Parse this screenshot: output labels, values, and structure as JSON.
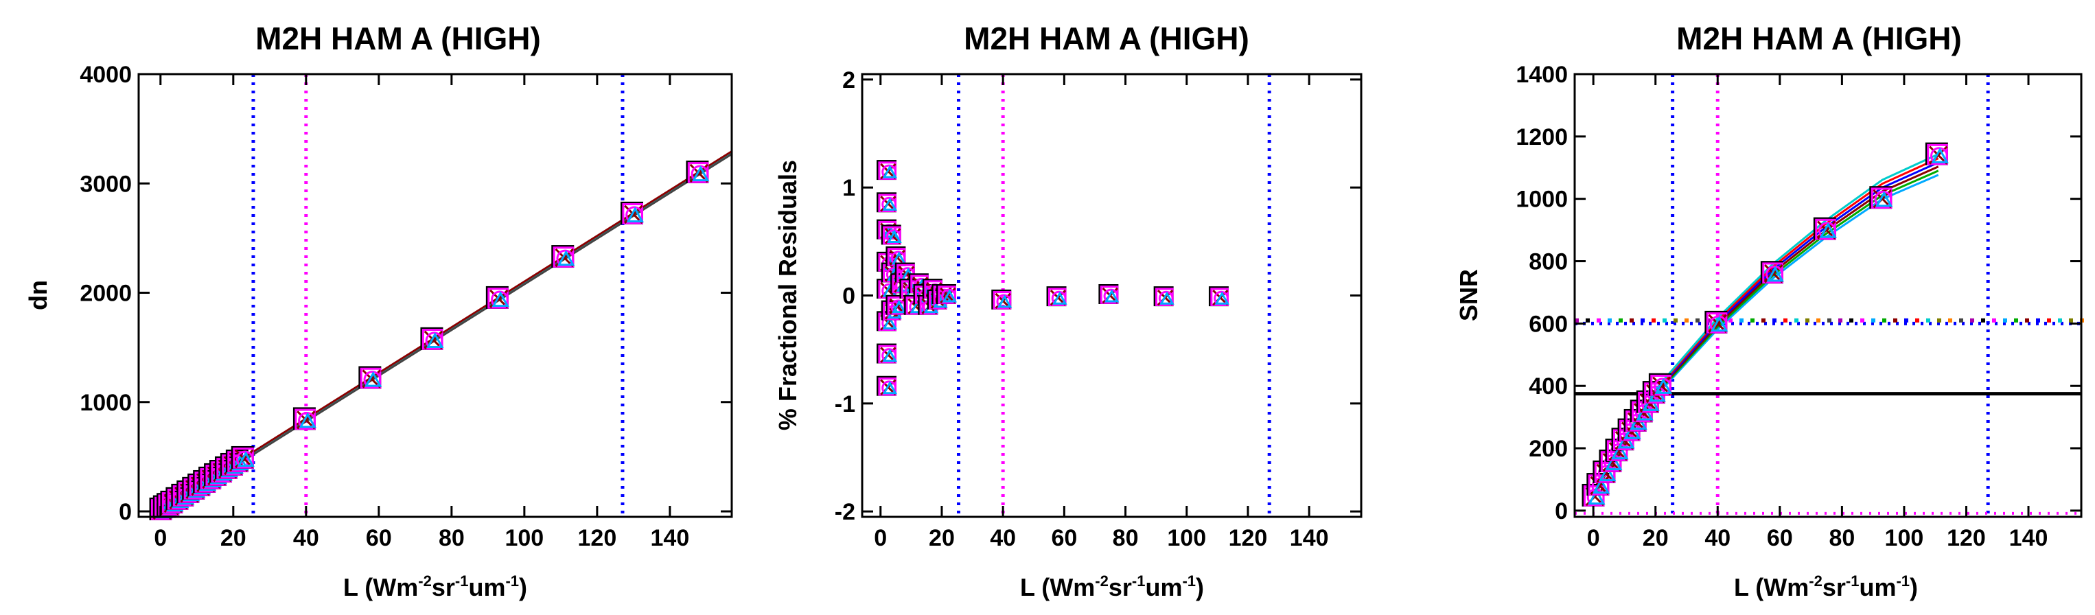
{
  "figure": {
    "colors": {
      "vline_outer": "#0000ff",
      "vline_mid": "#ff00ff",
      "spec_line": "#000000",
      "series": [
        "#000000",
        "#ff00ff",
        "#00aaff",
        "#00aa00",
        "#8b0000",
        "#0000ff",
        "#ff0000",
        "#00cccc",
        "#7f7f00",
        "#ff7f00",
        "#444444",
        "#aa00aa"
      ]
    }
  },
  "chart_data": [
    {
      "type": "scatter",
      "title": "M2H HAM A (HIGH)",
      "xlabel": {
        "base": "L (Wm",
        "sup1": "-2",
        "mid": "sr",
        "sup2": "-1",
        "unit": "um",
        "sup3": "-1",
        "end": ")"
      },
      "ylabel": "dn",
      "xlim": [
        -6,
        157
      ],
      "ylim": [
        -50,
        4000
      ],
      "xticks": [
        "0",
        "20",
        "40",
        "60",
        "80",
        "100",
        "120",
        "140"
      ],
      "xtick_values": [
        0,
        20,
        40,
        60,
        80,
        100,
        120,
        140
      ],
      "yticks": [
        "0",
        "1000",
        "2000",
        "3000",
        "4000"
      ],
      "ytick_values": [
        0,
        1000,
        2000,
        3000,
        4000
      ],
      "vlines": [
        {
          "x": 25.5,
          "color": "vline_outer"
        },
        {
          "x": 40,
          "color": "vline_mid"
        },
        {
          "x": 127,
          "color": "vline_outer"
        }
      ],
      "fit": {
        "slope": 20.9,
        "intercept": 0,
        "x_range": [
          0,
          157
        ]
      },
      "x": [
        0.5,
        1.5,
        2.5,
        3.5,
        5,
        6.5,
        8,
        9.5,
        11,
        12.5,
        14,
        15.5,
        17,
        18.5,
        20,
        21.5,
        23,
        40,
        58,
        75,
        93,
        111,
        130,
        148
      ],
      "y": [
        10,
        31,
        52,
        73,
        105,
        136,
        167,
        199,
        230,
        261,
        293,
        324,
        355,
        387,
        418,
        449,
        481,
        836,
        1212,
        1568,
        1944,
        2320,
        2717,
        3093
      ]
    },
    {
      "type": "scatter",
      "title": "M2H HAM A (HIGH)",
      "xlabel": {
        "base": "L (Wm",
        "sup1": "-2",
        "mid": "sr",
        "sup2": "-1",
        "unit": "um",
        "sup3": "-1",
        "end": ")"
      },
      "ylabel": "% Fractional Residuals",
      "xlim": [
        -6,
        157
      ],
      "ylim": [
        -2.05,
        2.05
      ],
      "xticks": [
        "0",
        "20",
        "40",
        "60",
        "80",
        "100",
        "120",
        "140"
      ],
      "xtick_values": [
        0,
        20,
        40,
        60,
        80,
        100,
        120,
        140
      ],
      "yticks": [
        "-2",
        "-1",
        "0",
        "1",
        "2"
      ],
      "ytick_values": [
        -2,
        -1,
        0,
        1,
        2
      ],
      "vlines": [
        {
          "x": 25.5,
          "color": "vline_outer"
        },
        {
          "x": 40,
          "color": "vline_mid"
        },
        {
          "x": 127,
          "color": "vline_outer"
        }
      ],
      "x": [
        2.5,
        2.5,
        2.5,
        2.5,
        2.5,
        2.5,
        2.5,
        2.5,
        4,
        4,
        4,
        5.5,
        5.5,
        7,
        8.5,
        10,
        11.5,
        13,
        14.5,
        16,
        17.5,
        19,
        20.5,
        22,
        40,
        58,
        75,
        93,
        111
      ],
      "y": [
        1.15,
        0.85,
        0.6,
        0.3,
        0.05,
        -0.25,
        -0.55,
        -0.85,
        0.55,
        0.2,
        -0.15,
        0.35,
        -0.1,
        0.1,
        0.2,
        0.05,
        -0.1,
        0.1,
        0.0,
        -0.1,
        0.05,
        -0.05,
        0.0,
        0.0,
        -0.05,
        -0.02,
        0.0,
        -0.02,
        -0.02
      ]
    },
    {
      "type": "line",
      "title": "M2H HAM A (HIGH)",
      "xlabel": {
        "base": "L (Wm",
        "sup1": "-2",
        "mid": "sr",
        "sup2": "-1",
        "unit": "um",
        "sup3": "-1",
        "end": ")"
      },
      "ylabel": "SNR",
      "xlim": [
        -6,
        157
      ],
      "ylim": [
        -20,
        1400
      ],
      "xticks": [
        "0",
        "20",
        "40",
        "60",
        "80",
        "100",
        "120",
        "140"
      ],
      "xtick_values": [
        0,
        20,
        40,
        60,
        80,
        100,
        120,
        140
      ],
      "yticks": [
        "0",
        "200",
        "400",
        "600",
        "800",
        "1000",
        "1200",
        "1400"
      ],
      "ytick_values": [
        0,
        200,
        400,
        600,
        800,
        1000,
        1200,
        1400
      ],
      "vlines": [
        {
          "x": 25.5,
          "color": "vline_outer"
        },
        {
          "x": 40,
          "color": "vline_mid"
        },
        {
          "x": 127,
          "color": "vline_outer"
        }
      ],
      "hlines": [
        {
          "y": 375,
          "style": "solid",
          "color": "spec_line"
        },
        {
          "y": 600,
          "style": "dotted",
          "color": "vline_outer"
        },
        {
          "y": 610,
          "style": "dotted",
          "color": "series"
        }
      ],
      "series": [
        {
          "name": "band",
          "x": [
            0.5,
            2,
            4,
            6,
            8,
            10,
            12,
            14,
            16,
            18,
            20,
            22,
            40,
            58,
            75,
            93,
            111
          ],
          "y": [
            45,
            80,
            120,
            155,
            190,
            225,
            255,
            285,
            315,
            345,
            375,
            400,
            600,
            770,
            905,
            1030,
            1110
          ]
        }
      ],
      "x": [
        0.5,
        2,
        4,
        6,
        8,
        10,
        12,
        14,
        16,
        18,
        20,
        22,
        40,
        58,
        75,
        93,
        111
      ],
      "y": [
        45,
        80,
        120,
        155,
        190,
        225,
        255,
        285,
        315,
        345,
        375,
        400,
        600,
        760,
        900,
        1000,
        1140
      ]
    }
  ]
}
